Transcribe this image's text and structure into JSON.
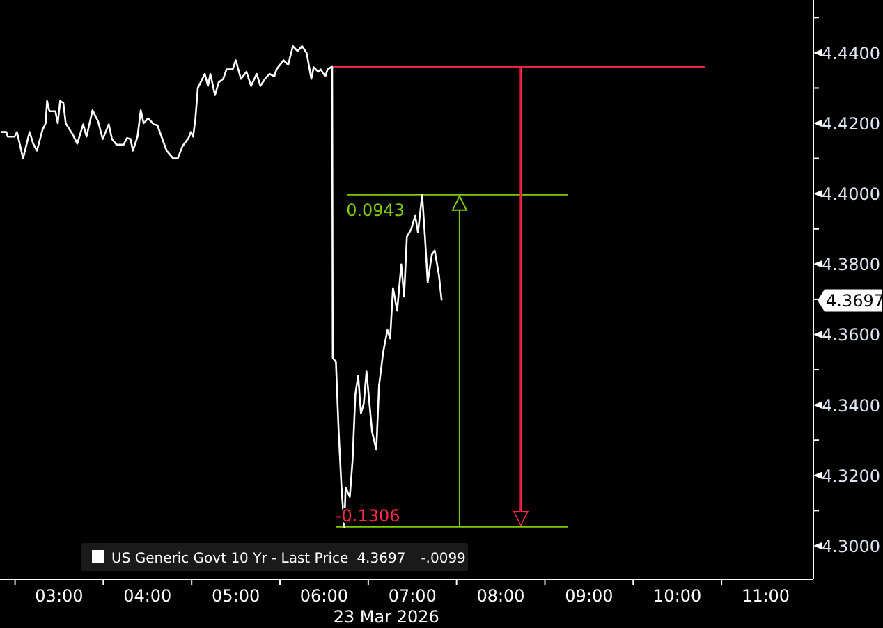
{
  "chart_data": {
    "type": "line",
    "xlabel": "23 Mar 2026",
    "x": [
      2.339,
      2.402,
      2.417,
      2.496,
      2.523,
      2.591,
      2.665,
      2.706,
      2.748,
      2.811,
      2.847,
      2.863,
      2.89,
      2.957,
      2.984,
      3.011,
      3.047,
      3.074,
      3.153,
      3.205,
      3.272,
      3.31,
      3.378,
      3.441,
      3.493,
      3.562,
      3.598,
      3.65,
      3.729,
      3.767,
      3.808,
      3.835,
      3.887,
      3.924,
      3.956,
      4.008,
      4.071,
      4.113,
      4.15,
      4.217,
      4.291,
      4.343,
      4.397,
      4.465,
      4.491,
      4.517,
      4.543,
      4.57,
      4.649,
      4.685,
      4.712,
      4.764,
      4.806,
      4.858,
      4.895,
      4.964,
      5.0,
      5.058,
      5.121,
      5.173,
      5.236,
      5.279,
      5.331,
      5.383,
      5.436,
      5.461,
      5.54,
      5.594,
      5.646,
      5.699,
      5.751,
      5.803,
      5.855,
      5.882,
      5.934,
      5.961,
      6.013,
      6.039,
      6.076,
      6.091,
      6.098,
      6.134,
      6.165,
      6.197,
      6.228,
      6.244,
      6.291,
      6.323,
      6.354,
      6.386,
      6.417,
      6.449,
      6.48,
      6.543,
      6.591,
      6.622,
      6.669,
      6.717,
      6.748,
      6.78,
      6.827,
      6.874,
      6.906,
      6.937,
      6.984,
      7.031,
      7.063,
      7.11,
      7.142,
      7.173,
      7.22,
      7.252,
      7.299,
      7.331
    ],
    "series": [
      {
        "name": "US Generic Govt 10 Yr - Last Price",
        "color": "#ffffff",
        "values": [
          4.4175,
          4.4175,
          4.4162,
          4.4162,
          4.4175,
          4.41,
          4.4175,
          4.4142,
          4.4122,
          4.4181,
          4.42,
          4.4263,
          4.4234,
          4.4234,
          4.42,
          4.4263,
          4.4258,
          4.42,
          4.4168,
          4.4142,
          4.4197,
          4.4162,
          4.4237,
          4.4205,
          4.4155,
          4.4197,
          4.4155,
          4.4139,
          4.4139,
          4.4158,
          4.4155,
          4.4122,
          4.4162,
          4.4237,
          4.42,
          4.4214,
          4.4197,
          4.4194,
          4.4168,
          4.4122,
          4.41,
          4.41,
          4.4135,
          4.4158,
          4.4175,
          4.4162,
          4.4214,
          4.43,
          4.434,
          4.4306,
          4.434,
          4.428,
          4.4316,
          4.4326,
          4.4353,
          4.4353,
          4.4379,
          4.4326,
          4.4346,
          4.4306,
          4.434,
          4.4306,
          4.4326,
          4.434,
          4.4333,
          4.4353,
          4.4379,
          4.4366,
          4.4419,
          4.4405,
          4.4419,
          4.4399,
          4.4326,
          4.4359,
          4.4346,
          4.4353,
          4.4333,
          4.4353,
          4.4359,
          4.436,
          4.3534,
          4.3522,
          4.3324,
          4.3166,
          4.3054,
          4.3166,
          4.3139,
          4.3245,
          4.3431,
          4.3483,
          4.3376,
          4.3404,
          4.3495,
          4.3324,
          4.3273,
          4.3455,
          4.355,
          4.3613,
          4.3589,
          4.3732,
          4.3668,
          4.3799,
          4.3708,
          4.3878,
          4.3898,
          4.3937,
          4.389,
          4.3997,
          4.3878,
          4.3748,
          4.3827,
          4.3839,
          4.3771,
          4.3697
        ]
      }
    ],
    "xlim": [
      2.33,
      11.54
    ],
    "xticks": [
      {
        "value": 2.5,
        "label": null
      },
      {
        "value": 3,
        "label": "03:00"
      },
      {
        "value": 3.5,
        "label": null
      },
      {
        "value": 4,
        "label": "04:00"
      },
      {
        "value": 4.5,
        "label": null
      },
      {
        "value": 5,
        "label": "05:00"
      },
      {
        "value": 5.5,
        "label": null
      },
      {
        "value": 6,
        "label": "06:00"
      },
      {
        "value": 6.5,
        "label": null
      },
      {
        "value": 7,
        "label": "07:00"
      },
      {
        "value": 7.5,
        "label": null
      },
      {
        "value": 8,
        "label": "08:00"
      },
      {
        "value": 8.5,
        "label": null
      },
      {
        "value": 9,
        "label": "09:00"
      },
      {
        "value": 9.5,
        "label": null
      },
      {
        "value": 10,
        "label": "10:00"
      },
      {
        "value": 10.5,
        "label": null
      },
      {
        "value": 11,
        "label": "11:00"
      }
    ],
    "ylim": [
      4.2905,
      4.455
    ],
    "yticks": [
      {
        "value": 4.45,
        "label": null
      },
      {
        "value": 4.44,
        "label": "4.4400"
      },
      {
        "value": 4.43,
        "label": null
      },
      {
        "value": 4.42,
        "label": "4.4200"
      },
      {
        "value": 4.41,
        "label": null
      },
      {
        "value": 4.4,
        "label": "4.4000"
      },
      {
        "value": 4.39,
        "label": null
      },
      {
        "value": 4.38,
        "label": "4.3800"
      },
      {
        "value": 4.37,
        "label": null
      },
      {
        "value": 4.36,
        "label": "4.3600"
      },
      {
        "value": 4.35,
        "label": null
      },
      {
        "value": 4.34,
        "label": "4.3400"
      },
      {
        "value": 4.33,
        "label": null
      },
      {
        "value": 4.32,
        "label": "4.3200"
      },
      {
        "value": 4.31,
        "label": null
      },
      {
        "value": 4.3,
        "label": "4.3000"
      }
    ],
    "ref_lines": [
      {
        "axis": "y",
        "value": 4.436,
        "color": "#e8243c"
      },
      {
        "axis": "y",
        "value": 4.3997,
        "color": "#7ccc00"
      },
      {
        "axis": "y",
        "value": 4.3054,
        "color": "#7ccc00"
      }
    ],
    "annotations": [
      {
        "text": "-0.1306",
        "x": 6.13,
        "y": 4.3054
      },
      {
        "text": "0.0943",
        "x": 6.25,
        "y": 4.3997
      },
      "4.3697",
      "-.0099"
    ],
    "legend": "bottom left",
    "grid": false,
    "marker": "none",
    "line_style": "solid"
  }
}
